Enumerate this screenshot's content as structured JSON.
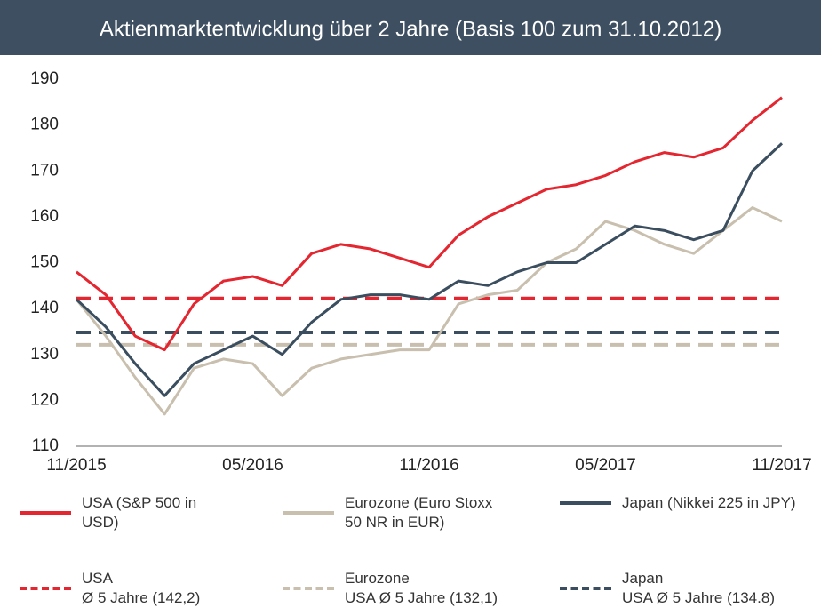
{
  "chart_data": {
    "type": "line",
    "title": "Aktienmarktentwicklung über 2 Jahre (Basis 100 zum 31.10.2012)",
    "categories": [
      "11/2015",
      null,
      null,
      null,
      null,
      null,
      "05/2016",
      null,
      null,
      null,
      null,
      null,
      "11/2016",
      null,
      null,
      null,
      null,
      null,
      "05/2017",
      null,
      null,
      null,
      null,
      null,
      "11/2017"
    ],
    "ylim": [
      110,
      190
    ],
    "yticks": [
      110,
      120,
      130,
      140,
      150,
      160,
      170,
      180,
      190
    ],
    "series": [
      {
        "name": "USA (S&P 500 in\nUSD)",
        "color": "#e3262f",
        "values": [
          148,
          143,
          134,
          131,
          141,
          146,
          147,
          145,
          152,
          154,
          153,
          151,
          149,
          156,
          160,
          163,
          166,
          167,
          169,
          172,
          174,
          173,
          175,
          181,
          186
        ]
      },
      {
        "name": "Eurozone (Euro Stoxx\n50 NR in EUR)",
        "color": "#c8bfae",
        "values": [
          142,
          134,
          125,
          117,
          127,
          129,
          128,
          121,
          127,
          129,
          130,
          131,
          131,
          141,
          143,
          144,
          150,
          153,
          159,
          157,
          154,
          152,
          157,
          162,
          159
        ]
      },
      {
        "name": "Japan (Nikkei 225 in JPY)",
        "color": "#3b4e5f",
        "values": [
          142,
          136,
          128,
          121,
          128,
          131,
          134,
          130,
          137,
          142,
          143,
          143,
          142,
          146,
          145,
          148,
          150,
          150,
          154,
          158,
          157,
          155,
          157,
          170,
          176
        ]
      }
    ],
    "reference_lines": [
      {
        "name": "USA\nØ 5 Jahre (142,2)",
        "color": "#e3262f",
        "value": 142.2
      },
      {
        "name": "Eurozone\nUSA Ø 5 Jahre (132,1)",
        "color": "#c8bfae",
        "value": 132.1
      },
      {
        "name": "Japan\nUSA Ø 5 Jahre (134.8)",
        "color": "#3b4e5f",
        "value": 134.8
      }
    ]
  }
}
